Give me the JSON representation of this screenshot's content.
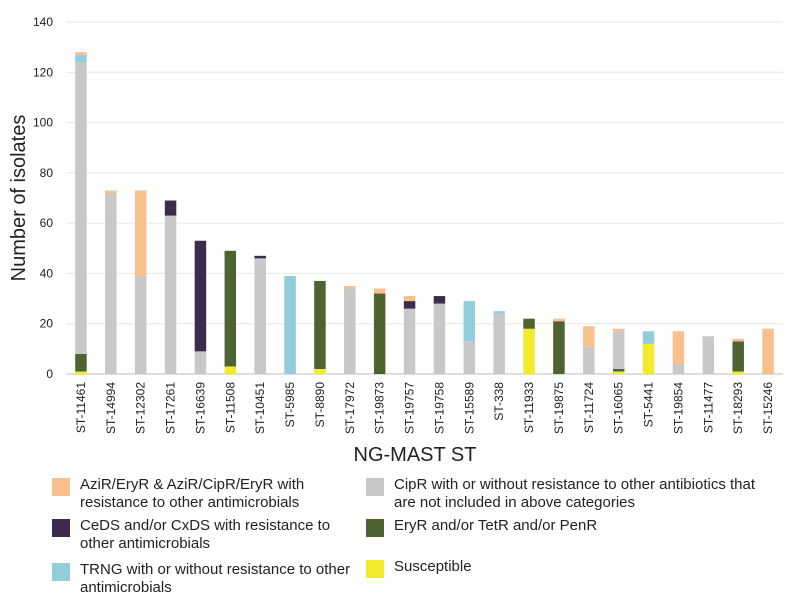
{
  "chart_data": {
    "type": "bar",
    "stacked": true,
    "xlabel": "NG-MAST ST",
    "ylabel": "Number of isolates",
    "ylim": [
      0,
      140
    ],
    "yticks": [
      0,
      20,
      40,
      60,
      80,
      100,
      120,
      140
    ],
    "grid": true,
    "legend_position": "bottom",
    "categories": [
      "ST-11461",
      "ST-14994",
      "ST-12302",
      "ST-17261",
      "ST-16639",
      "ST-11508",
      "ST-10451",
      "ST-5985",
      "ST-8890",
      "ST-17972",
      "ST-19873",
      "ST-19757",
      "ST-19758",
      "ST-15589",
      "ST-338",
      "ST-11933",
      "ST-19875",
      "ST-11724",
      "ST-16065",
      "ST-5441",
      "ST-19854",
      "ST-11477",
      "ST-18293",
      "ST-15246"
    ],
    "series": [
      {
        "name": "Susceptible",
        "color": "#F2EA2C",
        "values": [
          1,
          0,
          0,
          0,
          0,
          3,
          0,
          0,
          2,
          0,
          0,
          0,
          0,
          0,
          0,
          18,
          0,
          0,
          1,
          12,
          0,
          0,
          1,
          0
        ]
      },
      {
        "name": "EryR and/or TetR and/or PenR",
        "color": "#4E6430",
        "values": [
          7,
          0,
          0,
          0,
          0,
          46,
          0,
          0,
          35,
          0,
          32,
          0,
          0,
          0,
          0,
          4,
          21,
          0,
          1,
          0,
          0,
          0,
          12,
          0
        ]
      },
      {
        "name": "CipR with or without resistance to other antibiotics that are not included in above categories",
        "color": "#C8C8C8",
        "values": [
          116,
          72,
          39,
          63,
          9,
          0,
          46,
          0,
          0,
          34,
          0,
          26,
          28,
          13,
          24,
          0,
          0,
          11,
          15,
          0,
          4,
          15,
          0,
          0
        ]
      },
      {
        "name": "TRNG with or without resistance to other antimicrobials",
        "color": "#92CDDC",
        "values": [
          3,
          0,
          0,
          0,
          0,
          0,
          0,
          39,
          0,
          0,
          0,
          0,
          0,
          16,
          1,
          0,
          0,
          0,
          0,
          5,
          0,
          0,
          0,
          0
        ]
      },
      {
        "name": "CeDS and/or CxDS with resistance to other antimicrobials",
        "color": "#3B2C4E",
        "values": [
          0,
          0,
          0,
          6,
          44,
          0,
          1,
          0,
          0,
          0,
          0,
          3,
          3,
          0,
          0,
          0,
          0,
          0,
          0,
          0,
          0,
          0,
          0,
          0
        ]
      },
      {
        "name": "AziR/EryR & AziR/CipR/EryR with resistance to other antimicrobials",
        "color": "#F9BF8C",
        "values": [
          1,
          1,
          34,
          0,
          0,
          0,
          0,
          0,
          0,
          1,
          2,
          2,
          0,
          0,
          0,
          0,
          1,
          8,
          1,
          0,
          13,
          0,
          1,
          18
        ]
      }
    ]
  },
  "legend": [
    {
      "label": "AziR/EryR & AziR/CipR/EryR with resistance to other antimicrobials",
      "color": "#F9BF8C"
    },
    {
      "label": "CeDS and/or CxDS with resistance to other antimicrobials",
      "color": "#3B2C4E"
    },
    {
      "label": "TRNG with or without resistance to other antimicrobials",
      "color": "#92CDDC"
    },
    {
      "label": "CipR with or without resistance to other antibiotics that are not included in above categories",
      "color": "#C8C8C8"
    },
    {
      "label": "EryR and/or TetR and/or PenR",
      "color": "#4E6430"
    },
    {
      "label": "Susceptible",
      "color": "#F2EA2C"
    }
  ]
}
